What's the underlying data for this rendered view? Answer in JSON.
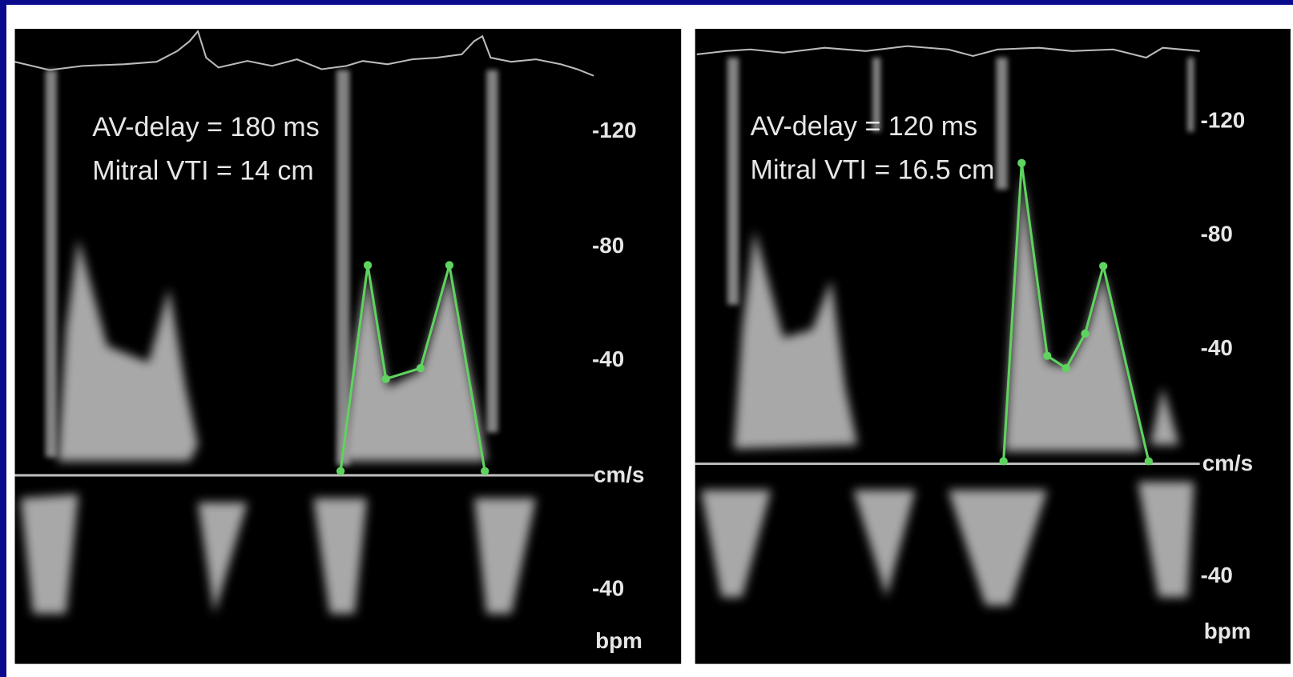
{
  "panels": [
    {
      "annotations": [
        "AV-delay = 180 ms",
        "Mitral VTI = 14 cm"
      ],
      "scale_labels": [
        "-120",
        "-80",
        "-40",
        "cm/s",
        "-40",
        "bpm"
      ]
    },
    {
      "annotations": [
        "AV-delay = 120 ms",
        "Mitral VTI = 16.5 cm"
      ],
      "scale_labels": [
        "-120",
        "-80",
        "-40",
        "cm/s",
        "-40",
        "bpm"
      ]
    }
  ]
}
